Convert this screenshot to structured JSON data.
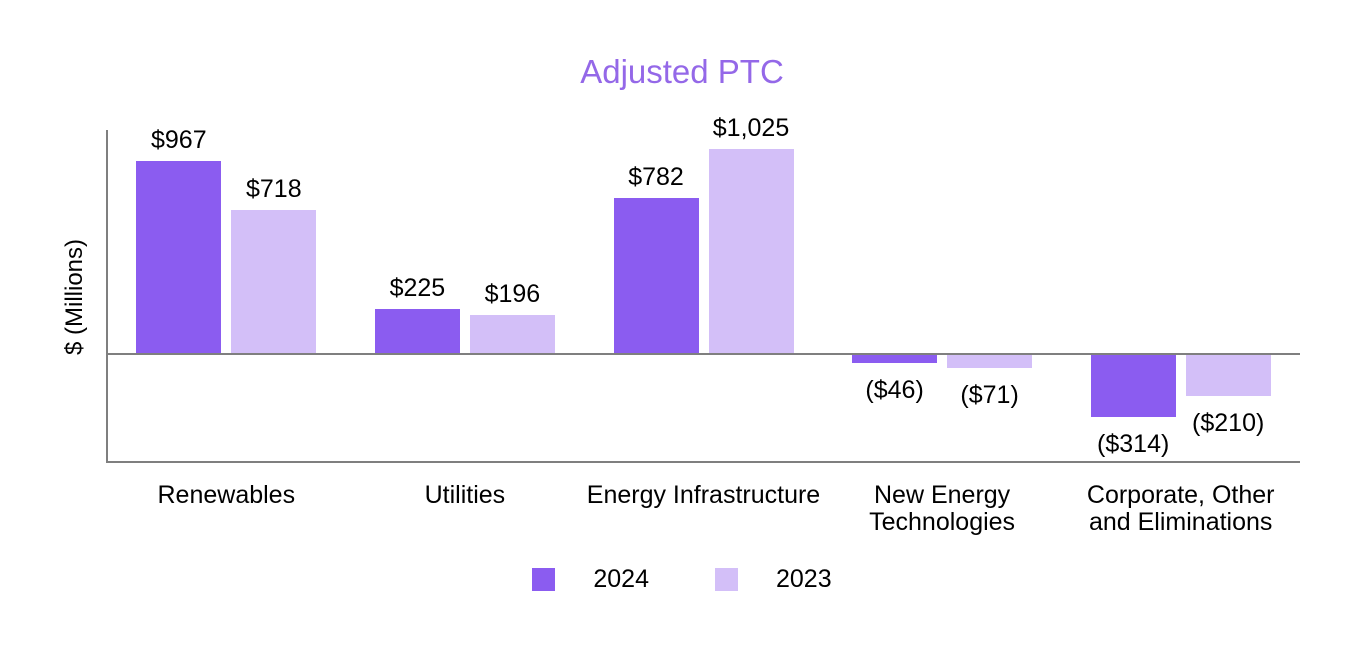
{
  "chart_data": {
    "type": "bar",
    "title": "Adjusted PTC",
    "title_color": "#9468E8",
    "xlabel": "",
    "ylabel": "$ (Millions)",
    "categories": [
      "Renewables",
      "Utilities",
      "Energy Infrastructure",
      "New Energy\nTechnologies",
      "Corporate, Other\nand Eliminations"
    ],
    "series": [
      {
        "name": "2024",
        "color": "#8B5CF0",
        "values": [
          967,
          225,
          782,
          -46,
          -314
        ],
        "labels": [
          "$967",
          "$225",
          "$782",
          "($46)",
          "($314)"
        ]
      },
      {
        "name": "2023",
        "color": "#D3BFF8",
        "values": [
          718,
          196,
          1025,
          -71,
          -210
        ],
        "labels": [
          "$718",
          "$196",
          "$1,025",
          "($71)",
          "($210)"
        ]
      }
    ],
    "ylim": [
      -545,
      1120
    ],
    "grid": false,
    "axis_color": "#7F7F7F",
    "label_color": "#000000",
    "legend_position": "bottom"
  }
}
